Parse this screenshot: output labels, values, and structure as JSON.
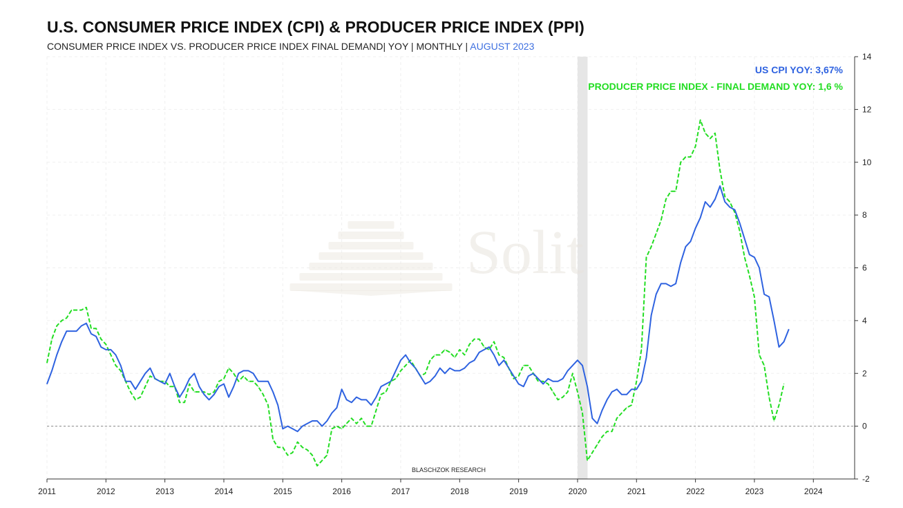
{
  "title": "U.S. CONSUMER PRICE INDEX (CPI) & PRODUCER PRICE INDEX (PPI)",
  "subtitle": "CONSUMER PRICE INDEX VS. PRODUCER PRICE INDEX FINAL DEMAND| YOY | MONTHLY | ",
  "subtitle_accent": "AUGUST 2023",
  "watermark": "Solit",
  "source_label": "BLASCHZOK   RESEARCH",
  "colors": {
    "cpi": "#2e62e0",
    "ppi": "#22dd22",
    "accent": "#3d6fe0",
    "recession": "#e6e6e6"
  },
  "chart_data": {
    "type": "line",
    "xlim": [
      2011.0,
      2024.7
    ],
    "ylim": [
      -2,
      14
    ],
    "y_ticks": [
      -2,
      0,
      2,
      4,
      6,
      8,
      10,
      12,
      14
    ],
    "x_ticks": [
      "2011",
      "2012",
      "2013",
      "2014",
      "2015",
      "2016",
      "2017",
      "2018",
      "2019",
      "2020",
      "2021",
      "2022",
      "2023",
      "2024"
    ],
    "y_axis_position": "right",
    "zero_line": "dashed",
    "recession_band": [
      2020.0,
      2020.17
    ],
    "legend": [
      {
        "label": "US CPI YOY: 3,67%",
        "series": "cpi"
      },
      {
        "label": "PRODUCER PRICE INDEX - FINAL DEMAND YOY: 1,6 %",
        "series": "ppi"
      }
    ],
    "series": [
      {
        "name": "US CPI YOY",
        "key": "cpi",
        "style": "solid",
        "start": 2011.0,
        "step": 0.08333,
        "values": [
          1.6,
          2.1,
          2.7,
          3.2,
          3.6,
          3.6,
          3.6,
          3.8,
          3.9,
          3.5,
          3.4,
          3.0,
          2.9,
          2.9,
          2.7,
          2.3,
          1.7,
          1.7,
          1.4,
          1.7,
          2.0,
          2.2,
          1.8,
          1.7,
          1.6,
          2.0,
          1.5,
          1.1,
          1.4,
          1.8,
          2.0,
          1.5,
          1.2,
          1.0,
          1.2,
          1.5,
          1.6,
          1.1,
          1.5,
          2.0,
          2.1,
          2.1,
          2.0,
          1.7,
          1.7,
          1.7,
          1.3,
          0.8,
          -0.1,
          0.0,
          -0.1,
          -0.2,
          0.0,
          0.1,
          0.2,
          0.2,
          0.0,
          0.2,
          0.5,
          0.7,
          1.4,
          1.0,
          0.9,
          1.1,
          1.0,
          1.0,
          0.8,
          1.1,
          1.5,
          1.6,
          1.7,
          2.1,
          2.5,
          2.7,
          2.4,
          2.2,
          1.9,
          1.6,
          1.7,
          1.9,
          2.2,
          2.0,
          2.2,
          2.1,
          2.1,
          2.2,
          2.4,
          2.5,
          2.8,
          2.9,
          3.0,
          2.7,
          2.3,
          2.5,
          2.2,
          1.9,
          1.6,
          1.5,
          1.9,
          2.0,
          1.8,
          1.6,
          1.8,
          1.7,
          1.7,
          1.8,
          2.1,
          2.3,
          2.5,
          2.3,
          1.5,
          0.3,
          0.1,
          0.6,
          1.0,
          1.3,
          1.4,
          1.2,
          1.2,
          1.4,
          1.4,
          1.7,
          2.6,
          4.2,
          5.0,
          5.4,
          5.4,
          5.3,
          5.4,
          6.2,
          6.8,
          7.0,
          7.5,
          7.9,
          8.5,
          8.3,
          8.6,
          9.1,
          8.5,
          8.3,
          8.2,
          7.7,
          7.1,
          6.5,
          6.4,
          6.0,
          5.0,
          4.9,
          4.0,
          3.0,
          3.2,
          3.67
        ]
      },
      {
        "name": "PRODUCER PRICE INDEX - FINAL DEMAND YOY",
        "key": "ppi",
        "style": "dashed",
        "start": 2011.0,
        "step": 0.08333,
        "values": [
          2.4,
          3.3,
          3.8,
          4.0,
          4.1,
          4.4,
          4.4,
          4.4,
          4.5,
          3.7,
          3.7,
          3.3,
          3.1,
          2.7,
          2.3,
          2.1,
          1.7,
          1.3,
          1.0,
          1.1,
          1.5,
          1.9,
          1.8,
          1.7,
          1.7,
          1.5,
          1.5,
          0.9,
          0.9,
          1.6,
          1.3,
          1.3,
          1.3,
          1.2,
          1.3,
          1.7,
          1.8,
          2.2,
          2.0,
          1.7,
          1.9,
          1.7,
          1.7,
          1.5,
          1.2,
          0.8,
          -0.5,
          -0.8,
          -0.8,
          -1.1,
          -1.0,
          -0.6,
          -0.8,
          -0.9,
          -1.1,
          -1.5,
          -1.3,
          -1.1,
          -0.1,
          0.0,
          -0.1,
          0.1,
          0.3,
          0.1,
          0.3,
          0.0,
          0.0,
          0.6,
          1.2,
          1.3,
          1.7,
          1.8,
          2.1,
          2.3,
          2.5,
          2.2,
          1.9,
          2.0,
          2.5,
          2.7,
          2.7,
          2.9,
          2.8,
          2.6,
          2.9,
          2.7,
          3.1,
          3.3,
          3.3,
          3.0,
          2.9,
          3.2,
          2.7,
          2.6,
          2.2,
          1.8,
          1.9,
          2.3,
          2.3,
          2.0,
          1.7,
          1.7,
          1.6,
          1.3,
          1.0,
          1.1,
          1.3,
          2.0,
          1.3,
          0.5,
          -1.3,
          -1.0,
          -0.7,
          -0.4,
          -0.2,
          -0.2,
          0.3,
          0.5,
          0.7,
          0.8,
          1.7,
          2.9,
          6.4,
          6.8,
          7.3,
          7.8,
          8.6,
          8.9,
          8.9,
          10.0,
          10.2,
          10.2,
          10.6,
          11.6,
          11.1,
          10.9,
          11.1,
          9.7,
          8.7,
          8.5,
          8.1,
          7.4,
          6.4,
          5.7,
          4.9,
          2.7,
          2.3,
          1.1,
          0.2,
          0.8,
          1.6
        ]
      }
    ]
  }
}
